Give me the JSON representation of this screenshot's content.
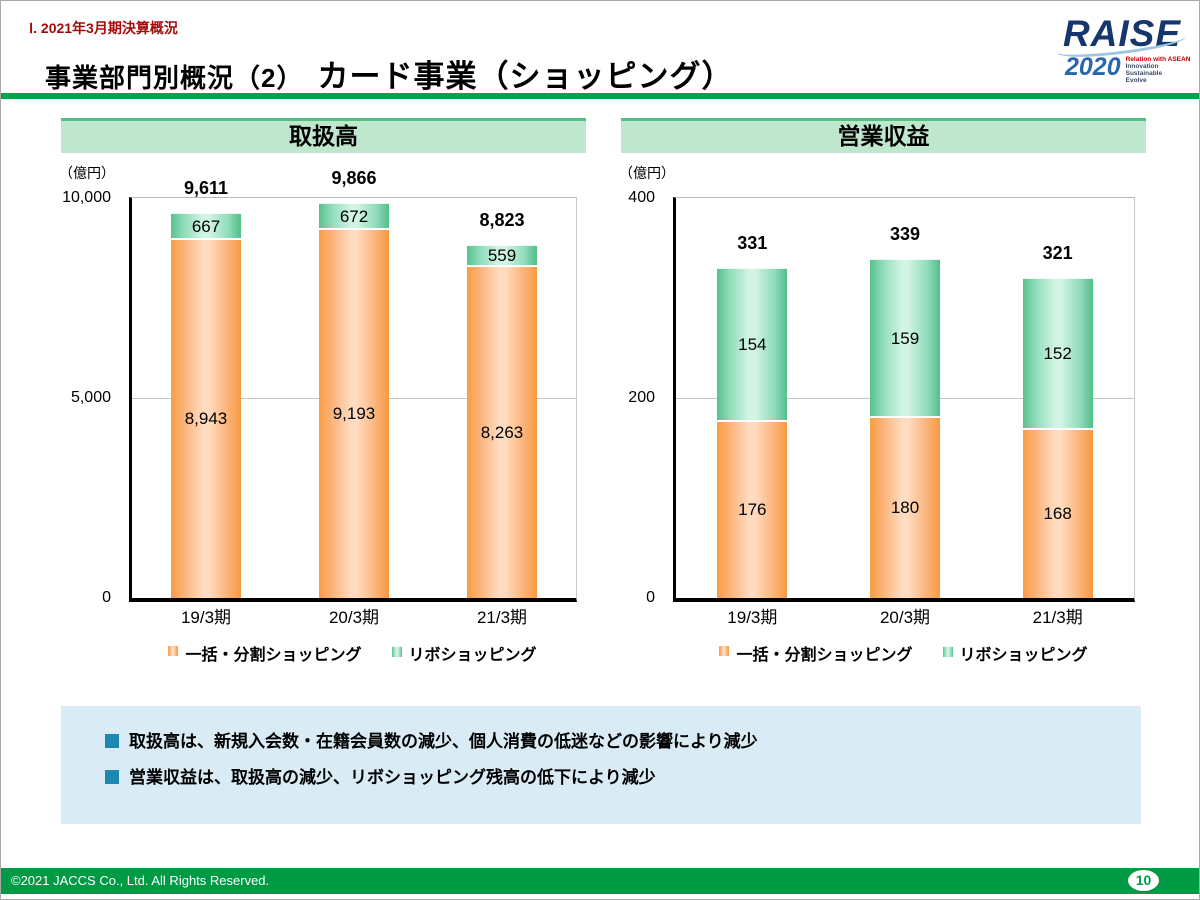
{
  "page": {
    "section_label": "Ⅰ. 2021年3月期決算概況",
    "title_main": "事業部門別概況（2）",
    "title_sub": "カード事業（ショッピング）",
    "footer": "©2021 JACCS Co., Ltd. All Rights Reserved.",
    "page_number": "10"
  },
  "logo": {
    "name": "RAISE",
    "year": "2020",
    "taglines": [
      "Relation with ASEAN",
      "Innovation",
      "Sustainable",
      "Evolve"
    ]
  },
  "colors": {
    "accent_green": "#00a44a",
    "chart_header_fill": "#bee7cd",
    "chart_header_border": "#54bf86",
    "bar_orange_edge": "#f89d44",
    "bar_orange_center": "#ffdcc0",
    "bar_green_edge": "#55c18b",
    "bar_green_center": "#d2f4e4",
    "note_box_bg": "#d9ecf6",
    "note_bullet": "#1d87b0",
    "footer_green": "#009a44",
    "section_label_red": "#a50a0a"
  },
  "notes": {
    "items": [
      "取扱高は、新規入会数・在籍会員数の減少、個人消費の低迷などの影響により減少",
      "営業収益は、取扱高の減少、リボショッピング残高の低下により減少"
    ]
  },
  "chart_data": [
    {
      "type": "bar",
      "stacked": true,
      "title": "取扱高",
      "unit": "（億円）",
      "categories": [
        "19/3期",
        "20/3期",
        "21/3期"
      ],
      "series": [
        {
          "name": "一括・分割ショッピング",
          "color_key": "orange",
          "values": [
            8943,
            9193,
            8263
          ]
        },
        {
          "name": "リボショッピング",
          "color_key": "green",
          "values": [
            667,
            672,
            559
          ]
        }
      ],
      "totals": [
        9611,
        9866,
        8823
      ],
      "ylim": [
        0,
        10000
      ],
      "yticks": [
        0,
        5000,
        10000
      ],
      "grid": true,
      "legend_position": "bottom"
    },
    {
      "type": "bar",
      "stacked": true,
      "title": "営業収益",
      "unit": "（億円）",
      "categories": [
        "19/3期",
        "20/3期",
        "21/3期"
      ],
      "series": [
        {
          "name": "一括・分割ショッピング",
          "color_key": "orange",
          "values": [
            176,
            180,
            168
          ]
        },
        {
          "name": "リボショッピング",
          "color_key": "green",
          "values": [
            154,
            159,
            152
          ]
        }
      ],
      "totals": [
        331,
        339,
        321
      ],
      "ylim": [
        0,
        400
      ],
      "yticks": [
        0,
        200,
        400
      ],
      "grid": true,
      "legend_position": "bottom"
    }
  ]
}
